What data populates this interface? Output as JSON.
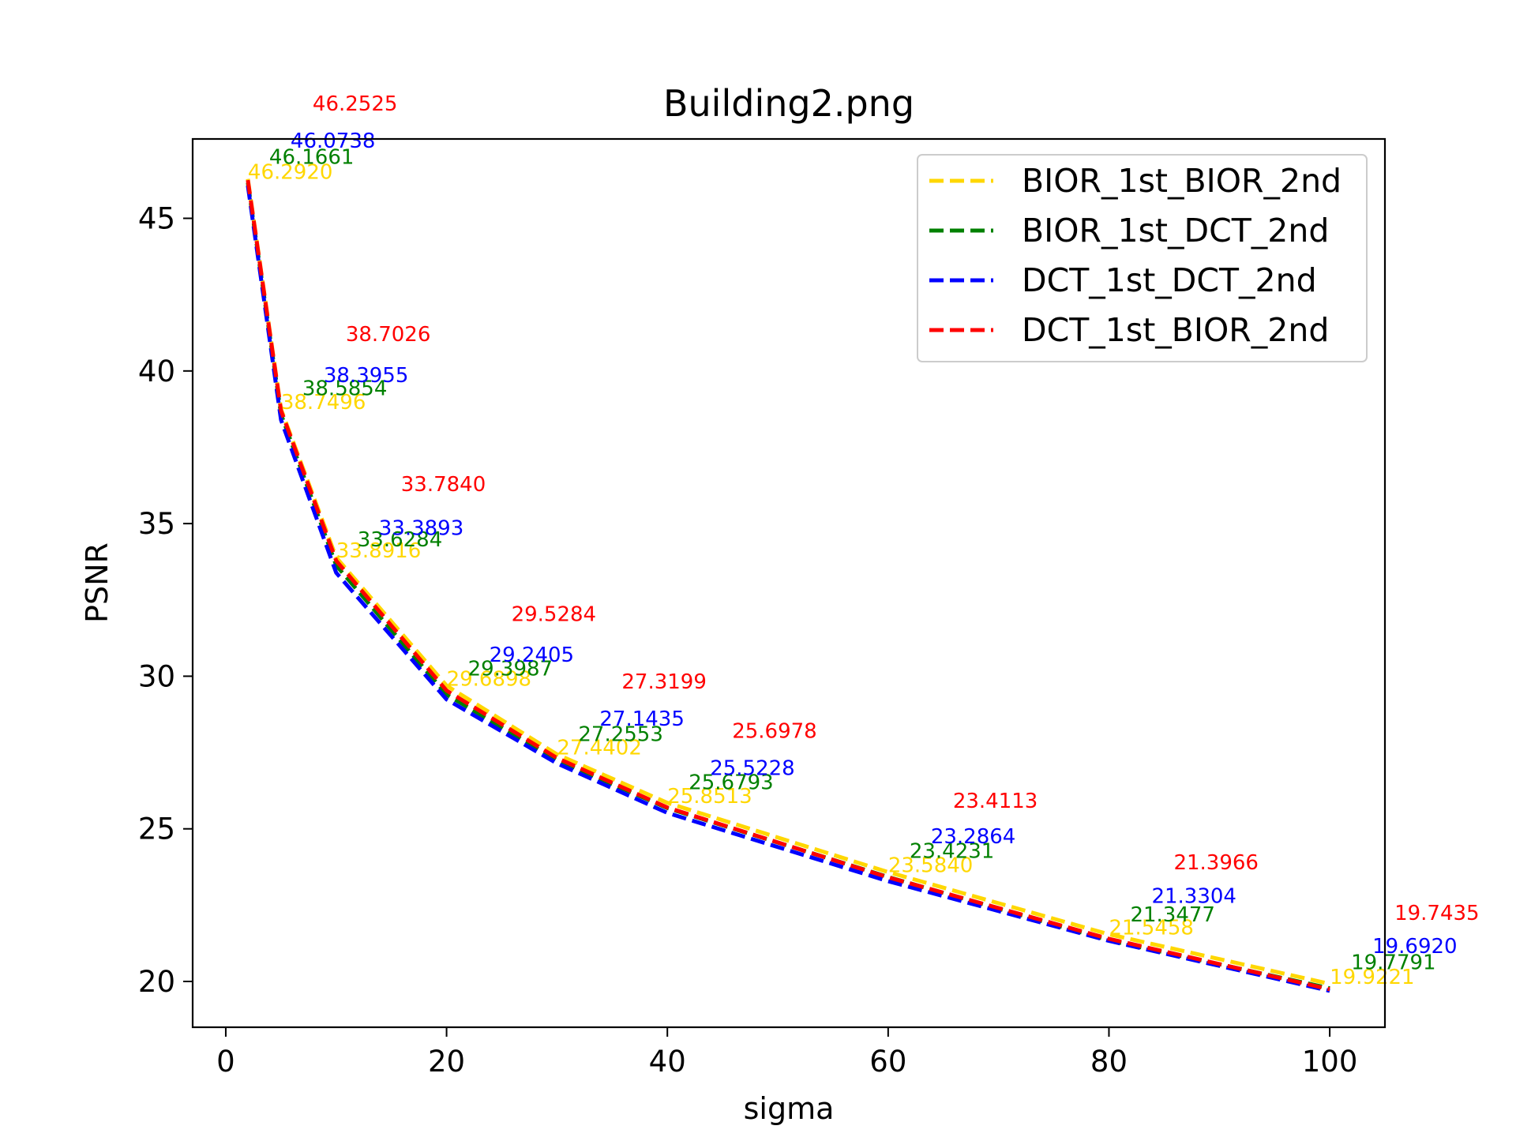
{
  "chart_data": {
    "type": "line",
    "title": "Building2.png",
    "xlabel": "sigma",
    "ylabel": "PSNR",
    "xlim": [
      -3,
      105
    ],
    "ylim": [
      18.5,
      47.6
    ],
    "x_ticks": [
      0,
      20,
      40,
      60,
      80,
      100
    ],
    "y_ticks": [
      20,
      25,
      30,
      35,
      40,
      45
    ],
    "x_tick_labels": [
      "0",
      "20",
      "40",
      "60",
      "80",
      "100"
    ],
    "y_tick_labels": [
      "20",
      "25",
      "30",
      "35",
      "40",
      "45"
    ],
    "grid": false,
    "legend_position": "top-right",
    "x": [
      2,
      5,
      10,
      20,
      30,
      40,
      60,
      80,
      100
    ],
    "series": [
      {
        "name": "BIOR_1st_BIOR_2nd",
        "color": "#FFD700",
        "line_style": "dashed",
        "values": [
          46.292,
          38.7496,
          33.8916,
          29.6898,
          27.4402,
          25.8513,
          23.584,
          21.5458,
          19.9221
        ],
        "labels": [
          "46.2920",
          "38.7496",
          "33.8916",
          "29.6898",
          "27.4402",
          "25.8513",
          "23.5840",
          "21.5458",
          "19.9221"
        ]
      },
      {
        "name": "BIOR_1st_DCT_2nd",
        "color": "#008000",
        "line_style": "dashed",
        "values": [
          46.1661,
          38.5854,
          33.6284,
          29.3987,
          27.2553,
          25.6793,
          23.4231,
          21.3477,
          19.7791
        ],
        "labels": [
          "46.1661",
          "38.5854",
          "33.6284",
          "29.3987",
          "27.2553",
          "25.6793",
          "23.4231",
          "21.3477",
          "19.7791"
        ]
      },
      {
        "name": "DCT_1st_DCT_2nd",
        "color": "#0000FF",
        "line_style": "dashed",
        "values": [
          46.0738,
          38.3955,
          33.3893,
          29.2405,
          27.1435,
          25.5228,
          23.2864,
          21.3304,
          19.692
        ],
        "labels": [
          "46.0738",
          "38.3955",
          "33.3893",
          "29.2405",
          "27.1435",
          "25.5228",
          "23.2864",
          "21.3304",
          "19.6920"
        ]
      },
      {
        "name": "DCT_1st_BIOR_2nd",
        "color": "#FF0000",
        "line_style": "dashed",
        "values": [
          46.2525,
          38.7026,
          33.784,
          29.5284,
          27.3199,
          25.6978,
          23.4113,
          21.3966,
          19.7435
        ],
        "labels": [
          "46.2525",
          "38.7026",
          "33.7840",
          "29.5284",
          "27.3199",
          "25.6978",
          "23.4113",
          "21.3966",
          "19.7435"
        ]
      }
    ]
  }
}
